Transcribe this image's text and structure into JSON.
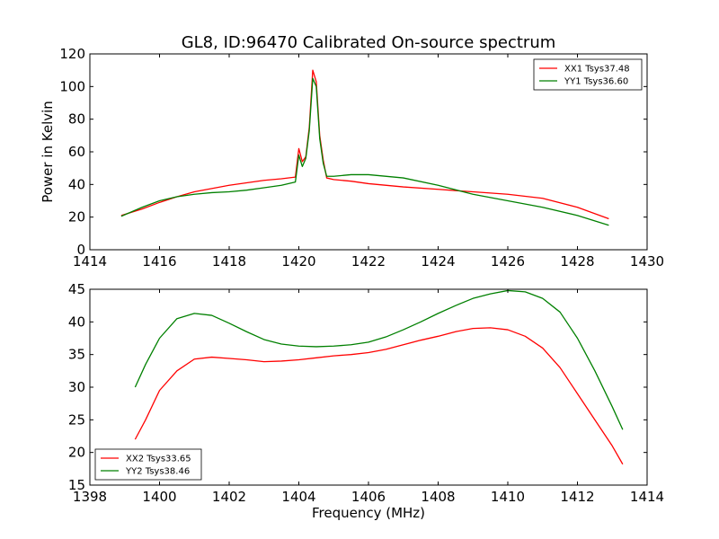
{
  "figure": {
    "title": "GL8, ID:96470 Calibrated On-source spectrum",
    "xlabel": "Frequency (MHz)",
    "ylabel": "Power in Kelvin"
  },
  "colors": {
    "red": "#ff0000",
    "green": "#008000"
  },
  "chart_data": [
    {
      "type": "line",
      "title": "GL8, ID:96470 Calibrated On-source spectrum",
      "xlabel": "",
      "ylabel": "Power in Kelvin",
      "xlim": [
        1414,
        1430
      ],
      "ylim": [
        0,
        120
      ],
      "xticks": [
        1414,
        1416,
        1418,
        1420,
        1422,
        1424,
        1426,
        1428,
        1430
      ],
      "yticks": [
        0,
        20,
        40,
        60,
        80,
        100,
        120
      ],
      "grid": false,
      "legend_position": "top-right",
      "series": [
        {
          "name": "XX1 Tsys37.48",
          "color": "#ff0000",
          "x": [
            1414.9,
            1415.5,
            1416.0,
            1416.5,
            1417.0,
            1417.5,
            1418.0,
            1418.5,
            1419.0,
            1419.5,
            1419.9,
            1420.0,
            1420.1,
            1420.2,
            1420.3,
            1420.4,
            1420.5,
            1420.6,
            1420.7,
            1420.8,
            1421.0,
            1421.5,
            1422.0,
            1423.0,
            1424.0,
            1425.0,
            1426.0,
            1427.0,
            1428.0,
            1428.9
          ],
          "y": [
            21,
            25,
            29,
            32.5,
            35.5,
            37.5,
            39.5,
            41,
            42.5,
            43.5,
            44.5,
            62,
            54,
            57,
            75,
            110,
            103,
            70,
            55,
            44,
            43,
            42,
            40.5,
            38.5,
            37,
            35.5,
            34,
            31.5,
            26,
            19
          ]
        },
        {
          "name": "YY1 Tsys36.60",
          "color": "#008000",
          "x": [
            1414.9,
            1415.5,
            1416.0,
            1416.5,
            1417.0,
            1417.5,
            1418.0,
            1418.5,
            1419.0,
            1419.5,
            1419.9,
            1420.0,
            1420.1,
            1420.2,
            1420.3,
            1420.4,
            1420.5,
            1420.6,
            1420.7,
            1420.8,
            1421.0,
            1421.5,
            1422.0,
            1423.0,
            1424.0,
            1425.0,
            1426.0,
            1427.0,
            1428.0,
            1428.9
          ],
          "y": [
            20.5,
            26,
            30,
            32.5,
            34,
            35,
            35.5,
            36.5,
            38,
            39.5,
            41.5,
            58,
            51,
            56,
            73,
            105,
            100,
            68,
            53,
            45,
            45,
            46,
            46,
            44,
            39.5,
            34,
            30,
            26,
            21,
            15
          ]
        }
      ]
    },
    {
      "type": "line",
      "xlabel": "Frequency (MHz)",
      "ylabel": "",
      "xlim": [
        1398,
        1414
      ],
      "ylim": [
        15,
        45
      ],
      "xticks": [
        1398,
        1400,
        1402,
        1404,
        1406,
        1408,
        1410,
        1412,
        1414
      ],
      "yticks": [
        15,
        20,
        25,
        30,
        35,
        40,
        45
      ],
      "grid": false,
      "legend_position": "bottom-left",
      "series": [
        {
          "name": "XX2 Tsys33.65",
          "color": "#ff0000",
          "x": [
            1399.3,
            1399.6,
            1400.0,
            1400.5,
            1401.0,
            1401.5,
            1402.0,
            1402.5,
            1403.0,
            1403.5,
            1404.0,
            1404.5,
            1405.0,
            1405.5,
            1406.0,
            1406.5,
            1407.0,
            1407.5,
            1408.0,
            1408.5,
            1409.0,
            1409.5,
            1410.0,
            1410.5,
            1411.0,
            1411.5,
            1412.0,
            1412.5,
            1413.0,
            1413.3
          ],
          "y": [
            22,
            25,
            29.5,
            32.5,
            34.3,
            34.6,
            34.4,
            34.2,
            33.9,
            34,
            34.2,
            34.5,
            34.8,
            35,
            35.3,
            35.8,
            36.5,
            37.2,
            37.8,
            38.5,
            39,
            39.1,
            38.8,
            37.8,
            36,
            33,
            29,
            25,
            21,
            18.2
          ]
        },
        {
          "name": "YY2 Tsys38.46",
          "color": "#008000",
          "x": [
            1399.3,
            1399.6,
            1400.0,
            1400.5,
            1401.0,
            1401.5,
            1402.0,
            1402.5,
            1403.0,
            1403.5,
            1404.0,
            1404.5,
            1405.0,
            1405.5,
            1406.0,
            1406.5,
            1407.0,
            1407.5,
            1408.0,
            1408.5,
            1409.0,
            1409.5,
            1410.0,
            1410.5,
            1411.0,
            1411.5,
            1412.0,
            1412.5,
            1413.0,
            1413.3
          ],
          "y": [
            30,
            33.5,
            37.5,
            40.5,
            41.3,
            41,
            39.8,
            38.5,
            37.3,
            36.6,
            36.3,
            36.2,
            36.3,
            36.5,
            36.9,
            37.7,
            38.8,
            40,
            41.3,
            42.5,
            43.6,
            44.3,
            44.8,
            44.6,
            43.6,
            41.5,
            37.5,
            32.5,
            27,
            23.5
          ]
        }
      ]
    }
  ]
}
